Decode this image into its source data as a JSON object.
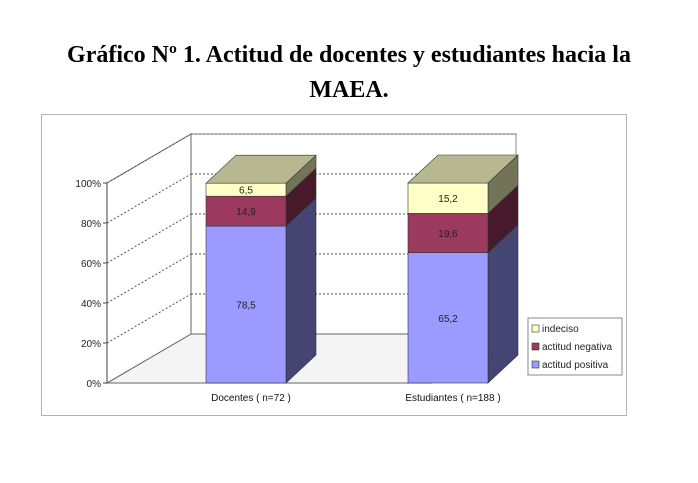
{
  "title_lines": [
    "Gráfico Nº 1. Actitud de docentes y estudiantes hacia la",
    "MAEA."
  ],
  "colors": {
    "positiva": "#9a9aff",
    "negativa": "#9b3a5e",
    "indeciso": "#ffffc8",
    "top": "#b8b890"
  },
  "chart_data": {
    "type": "bar",
    "stacked": true,
    "percent": true,
    "three_d": true,
    "title": "Gráfico Nº 1. Actitud de docentes y estudiantes hacia la MAEA.",
    "categories": [
      "Docentes ( n=72 )",
      "Estudiantes ( n=188 )"
    ],
    "series": [
      {
        "name": "actitud positiva",
        "values": [
          78.5,
          65.2
        ],
        "labels": [
          "78,5",
          "65,2"
        ]
      },
      {
        "name": "actitud negativa",
        "values": [
          14.9,
          19.6
        ],
        "labels": [
          "14,9",
          "19,6"
        ]
      },
      {
        "name": "indeciso",
        "values": [
          6.5,
          15.2
        ],
        "labels": [
          "6,5",
          "15,2"
        ]
      }
    ],
    "y_ticks": [
      "0%",
      "20%",
      "40%",
      "60%",
      "80%",
      "100%"
    ],
    "ylim": [
      0,
      100
    ],
    "grid": true,
    "legend_position": "bottom-right",
    "legend_order": [
      "indeciso",
      "actitud negativa",
      "actitud positiva"
    ]
  }
}
